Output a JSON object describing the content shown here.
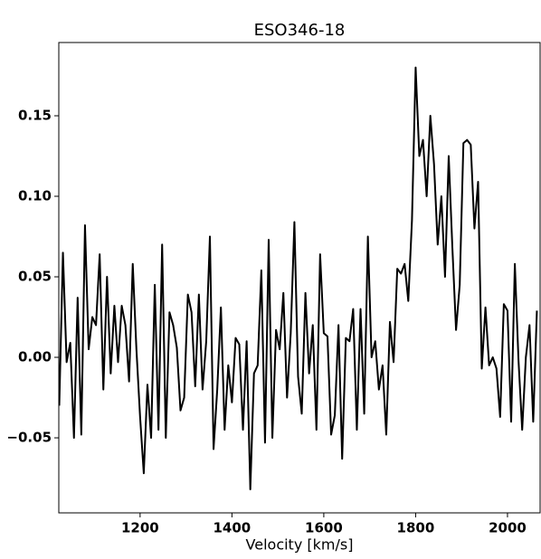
{
  "chart_data": {
    "type": "line",
    "title": "ESO346-18",
    "xlabel": "Velocity [km/s]",
    "x": [
      1024,
      1032,
      1040,
      1048,
      1056,
      1064,
      1072,
      1080,
      1088,
      1096,
      1104,
      1112,
      1120,
      1128,
      1136,
      1144,
      1152,
      1160,
      1168,
      1176,
      1184,
      1192,
      1200,
      1208,
      1216,
      1224,
      1232,
      1240,
      1248,
      1256,
      1264,
      1272,
      1280,
      1288,
      1296,
      1304,
      1312,
      1320,
      1328,
      1336,
      1344,
      1352,
      1360,
      1368,
      1376,
      1384,
      1392,
      1400,
      1408,
      1416,
      1424,
      1432,
      1440,
      1448,
      1456,
      1464,
      1472,
      1480,
      1488,
      1496,
      1504,
      1512,
      1520,
      1528,
      1536,
      1544,
      1552,
      1560,
      1568,
      1576,
      1584,
      1592,
      1600,
      1608,
      1616,
      1624,
      1632,
      1640,
      1648,
      1656,
      1664,
      1672,
      1680,
      1688,
      1696,
      1704,
      1712,
      1720,
      1728,
      1736,
      1744,
      1752,
      1760,
      1768,
      1776,
      1784,
      1792,
      1800,
      1808,
      1816,
      1824,
      1832,
      1840,
      1848,
      1856,
      1864,
      1872,
      1880,
      1888,
      1896,
      1904,
      1912,
      1920,
      1928,
      1936,
      1944,
      1952,
      1960,
      1968,
      1976,
      1984,
      1992,
      2000,
      2008,
      2016,
      2024,
      2032,
      2040,
      2048,
      2056,
      2064
    ],
    "series": [
      {
        "color": "#000000",
        "values": [
          -0.03,
          0.065,
          -0.003,
          0.009,
          -0.05,
          0.037,
          -0.048,
          0.082,
          0.005,
          0.025,
          0.02,
          0.064,
          -0.02,
          0.05,
          -0.01,
          0.032,
          -0.003,
          0.032,
          0.02,
          -0.015,
          0.058,
          0.005,
          -0.037,
          -0.072,
          -0.017,
          -0.05,
          0.045,
          -0.045,
          0.07,
          -0.05,
          0.028,
          0.02,
          0.006,
          -0.033,
          -0.025,
          0.039,
          0.028,
          -0.018,
          0.039,
          -0.02,
          0.01,
          0.075,
          -0.057,
          -0.02,
          0.031,
          -0.045,
          -0.005,
          -0.028,
          0.012,
          0.008,
          -0.045,
          0.01,
          -0.082,
          -0.01,
          -0.005,
          0.054,
          -0.053,
          0.073,
          -0.05,
          0.017,
          0.005,
          0.04,
          -0.025,
          0.015,
          0.084,
          -0.012,
          -0.035,
          0.04,
          -0.01,
          0.02,
          -0.045,
          0.064,
          0.015,
          0.013,
          -0.048,
          -0.036,
          0.02,
          -0.063,
          0.012,
          0.01,
          0.03,
          -0.045,
          0.03,
          -0.035,
          0.075,
          0.0,
          0.01,
          -0.02,
          -0.005,
          -0.048,
          0.022,
          -0.003,
          0.055,
          0.052,
          0.058,
          0.035,
          0.085,
          0.18,
          0.125,
          0.135,
          0.1,
          0.15,
          0.12,
          0.07,
          0.1,
          0.05,
          0.125,
          0.068,
          0.017,
          0.045,
          0.133,
          0.135,
          0.132,
          0.08,
          0.109,
          -0.007,
          0.031,
          -0.005,
          0.0,
          -0.007,
          -0.037,
          0.033,
          0.029,
          -0.04,
          0.058,
          -0.002,
          -0.045,
          0.0,
          0.02,
          -0.04,
          0.029
        ]
      }
    ],
    "xlim": [
      1023,
      2071
    ],
    "ylim": [
      -0.0966,
      0.1955
    ],
    "xticks": [
      1200,
      1400,
      1600,
      1800,
      2000
    ],
    "yticks": [
      {
        "value": -0.05,
        "label": "−0.05"
      },
      {
        "value": 0,
        "label": "0.00"
      },
      {
        "value": 0.05,
        "label": "0.05"
      },
      {
        "value": 0.1,
        "label": "0.10"
      },
      {
        "value": 0.15,
        "label": "0.15"
      }
    ]
  }
}
